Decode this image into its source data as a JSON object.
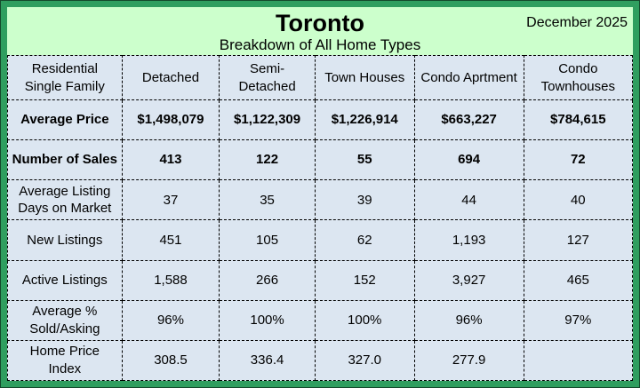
{
  "colors": {
    "frame_green": "#2f9e5f",
    "frame_outline": "#14492c",
    "header_bg": "#ccffcc",
    "table_bg": "#dce6f1",
    "grid_line": "#000000",
    "text": "#000000"
  },
  "chart_data": {
    "type": "table",
    "title": "Toronto",
    "date_label": "December 2025",
    "subtitle": "Breakdown of All Home Types",
    "corner_header": "Residential\nSingle Family",
    "columns": [
      "Detached",
      "Semi-\nDetached",
      "Town Houses",
      "Condo Aprtment",
      "Condo\nTownhouses"
    ],
    "rows": [
      {
        "label": "Average Price",
        "bold": true,
        "values": [
          "$1,498,079",
          "$1,122,309",
          "$1,226,914",
          "$663,227",
          "$784,615"
        ]
      },
      {
        "label": "Number of Sales",
        "bold": true,
        "values": [
          "413",
          "122",
          "55",
          "694",
          "72"
        ]
      },
      {
        "label": "Average Listing\nDays on Market",
        "bold": false,
        "values": [
          "37",
          "35",
          "39",
          "44",
          "40"
        ]
      },
      {
        "label": "New Listings",
        "bold": false,
        "values": [
          "451",
          "105",
          "62",
          "1,193",
          "127"
        ]
      },
      {
        "label": "Active Listings",
        "bold": false,
        "values": [
          "1,588",
          "266",
          "152",
          "3,927",
          "465"
        ]
      },
      {
        "label": "Average %\nSold/Asking",
        "bold": false,
        "values": [
          "96%",
          "100%",
          "100%",
          "96%",
          "97%"
        ]
      },
      {
        "label": "Home Price\nIndex",
        "bold": false,
        "values": [
          "308.5",
          "336.4",
          "327.0",
          "277.9",
          ""
        ]
      }
    ]
  }
}
